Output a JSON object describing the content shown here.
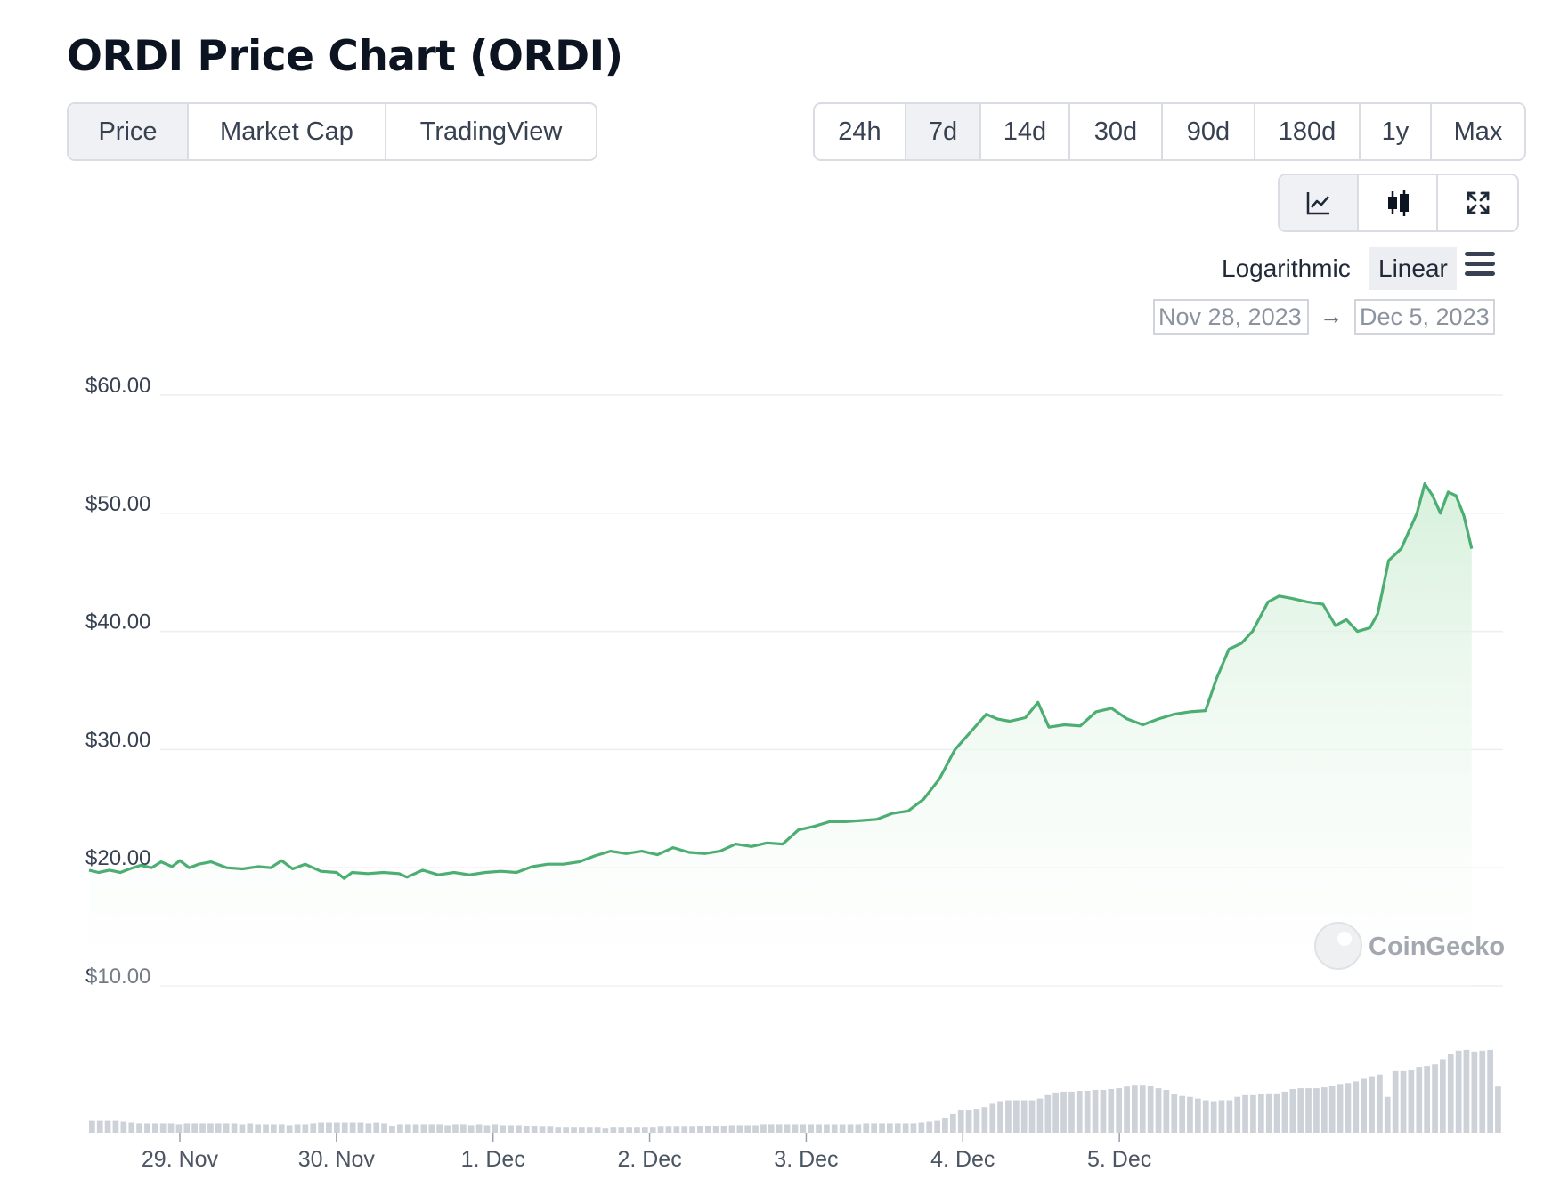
{
  "title": "ORDI Price Chart (ORDI)",
  "view_tabs": [
    {
      "label": "Price",
      "active": true
    },
    {
      "label": "Market Cap",
      "active": false
    },
    {
      "label": "TradingView",
      "active": false
    }
  ],
  "range_tabs": [
    {
      "label": "24h",
      "active": false
    },
    {
      "label": "7d",
      "active": true
    },
    {
      "label": "14d",
      "active": false
    },
    {
      "label": "30d",
      "active": false
    },
    {
      "label": "90d",
      "active": false
    },
    {
      "label": "180d",
      "active": false
    },
    {
      "label": "1y",
      "active": false
    },
    {
      "label": "Max",
      "active": false
    }
  ],
  "chart_type_tabs": [
    {
      "icon": "line-chart-icon",
      "active": true
    },
    {
      "icon": "candlestick-icon",
      "active": false
    },
    {
      "icon": "fullscreen-icon",
      "active": false
    }
  ],
  "scale": {
    "logarithmic": "Logarithmic",
    "linear": "Linear",
    "active": "Linear"
  },
  "menu_icon": "hamburger-menu-icon",
  "date_range": {
    "from": "Nov 28, 2023",
    "arrow": "→",
    "to": "Dec 5, 2023"
  },
  "watermark": {
    "text": "CoinGecko",
    "icon": "coingecko-logo-icon"
  },
  "colors": {
    "line": "#4cae72",
    "fill": "#dcf2df",
    "volume": "#cdd2d9",
    "grid": "#eceef1"
  },
  "chart_data": {
    "type": "area",
    "series": [
      {
        "name": "Price",
        "x_unit": "days since Nov 28 00:00",
        "points": [
          [
            0.42,
            19.8
          ],
          [
            0.48,
            19.6
          ],
          [
            0.55,
            19.8
          ],
          [
            0.62,
            19.6
          ],
          [
            0.68,
            19.9
          ],
          [
            0.75,
            20.2
          ],
          [
            0.82,
            20.0
          ],
          [
            0.88,
            20.5
          ],
          [
            0.95,
            20.1
          ],
          [
            1.0,
            20.6
          ],
          [
            1.06,
            20.0
          ],
          [
            1.12,
            20.3
          ],
          [
            1.2,
            20.5
          ],
          [
            1.3,
            20.0
          ],
          [
            1.4,
            19.9
          ],
          [
            1.5,
            20.1
          ],
          [
            1.58,
            20.0
          ],
          [
            1.65,
            20.6
          ],
          [
            1.72,
            19.9
          ],
          [
            1.8,
            20.3
          ],
          [
            1.9,
            19.7
          ],
          [
            2.0,
            19.6
          ],
          [
            2.05,
            19.1
          ],
          [
            2.1,
            19.6
          ],
          [
            2.2,
            19.5
          ],
          [
            2.3,
            19.6
          ],
          [
            2.4,
            19.5
          ],
          [
            2.45,
            19.2
          ],
          [
            2.55,
            19.8
          ],
          [
            2.65,
            19.4
          ],
          [
            2.75,
            19.6
          ],
          [
            2.85,
            19.4
          ],
          [
            2.95,
            19.6
          ],
          [
            3.05,
            19.7
          ],
          [
            3.15,
            19.6
          ],
          [
            3.25,
            20.1
          ],
          [
            3.35,
            20.3
          ],
          [
            3.45,
            20.3
          ],
          [
            3.55,
            20.5
          ],
          [
            3.65,
            21.0
          ],
          [
            3.75,
            21.4
          ],
          [
            3.85,
            21.2
          ],
          [
            3.95,
            21.4
          ],
          [
            4.05,
            21.1
          ],
          [
            4.15,
            21.7
          ],
          [
            4.25,
            21.3
          ],
          [
            4.35,
            21.2
          ],
          [
            4.45,
            21.4
          ],
          [
            4.55,
            22.0
          ],
          [
            4.65,
            21.8
          ],
          [
            4.75,
            22.1
          ],
          [
            4.85,
            22.0
          ],
          [
            4.95,
            23.2
          ],
          [
            5.05,
            23.5
          ],
          [
            5.15,
            23.9
          ],
          [
            5.25,
            23.9
          ],
          [
            5.35,
            24.0
          ],
          [
            5.45,
            24.1
          ],
          [
            5.55,
            24.6
          ],
          [
            5.65,
            24.8
          ],
          [
            5.75,
            25.8
          ],
          [
            5.85,
            27.5
          ],
          [
            5.95,
            30.0
          ],
          [
            6.05,
            31.5
          ],
          [
            6.15,
            33.0
          ],
          [
            6.22,
            32.6
          ],
          [
            6.3,
            32.4
          ],
          [
            6.4,
            32.7
          ],
          [
            6.48,
            34.0
          ],
          [
            6.55,
            31.9
          ],
          [
            6.65,
            32.1
          ],
          [
            6.75,
            32.0
          ],
          [
            6.85,
            33.2
          ],
          [
            6.95,
            33.5
          ],
          [
            7.05,
            32.6
          ],
          [
            7.15,
            32.1
          ],
          [
            7.25,
            32.6
          ],
          [
            7.35,
            33.0
          ],
          [
            7.45,
            33.2
          ],
          [
            7.55,
            33.3
          ],
          [
            7.62,
            36.0
          ],
          [
            7.7,
            38.5
          ],
          [
            7.78,
            39.0
          ],
          [
            7.85,
            40.0
          ],
          [
            7.95,
            42.5
          ],
          [
            8.02,
            43.0
          ],
          [
            8.1,
            42.8
          ],
          [
            8.2,
            42.5
          ],
          [
            8.3,
            42.3
          ],
          [
            8.38,
            40.5
          ],
          [
            8.45,
            41.0
          ],
          [
            8.52,
            40.0
          ],
          [
            8.6,
            40.3
          ],
          [
            8.65,
            41.5
          ],
          [
            8.72,
            46.0
          ],
          [
            8.8,
            47.0
          ],
          [
            8.85,
            48.5
          ],
          [
            8.9,
            50.0
          ],
          [
            8.95,
            52.5
          ],
          [
            9.0,
            51.5
          ],
          [
            9.05,
            50.0
          ],
          [
            9.1,
            51.8
          ],
          [
            9.15,
            51.5
          ],
          [
            9.2,
            49.8
          ],
          [
            9.25,
            47.0
          ]
        ]
      }
    ],
    "volume": {
      "name": "Volume",
      "relative": [
        0.14,
        0.14,
        0.14,
        0.14,
        0.13,
        0.12,
        0.11,
        0.11,
        0.11,
        0.11,
        0.11,
        0.1,
        0.11,
        0.11,
        0.11,
        0.11,
        0.11,
        0.11,
        0.11,
        0.1,
        0.11,
        0.1,
        0.1,
        0.1,
        0.1,
        0.09,
        0.1,
        0.1,
        0.11,
        0.12,
        0.12,
        0.12,
        0.12,
        0.12,
        0.12,
        0.11,
        0.12,
        0.11,
        0.08,
        0.1,
        0.1,
        0.1,
        0.1,
        0.1,
        0.1,
        0.09,
        0.1,
        0.1,
        0.09,
        0.1,
        0.09,
        0.1,
        0.09,
        0.09,
        0.09,
        0.08,
        0.08,
        0.07,
        0.07,
        0.06,
        0.06,
        0.06,
        0.06,
        0.06,
        0.06,
        0.05,
        0.06,
        0.06,
        0.06,
        0.06,
        0.06,
        0.06,
        0.07,
        0.07,
        0.07,
        0.07,
        0.07,
        0.08,
        0.08,
        0.08,
        0.08,
        0.09,
        0.09,
        0.09,
        0.09,
        0.1,
        0.1,
        0.1,
        0.1,
        0.1,
        0.1,
        0.1,
        0.1,
        0.1,
        0.1,
        0.1,
        0.1,
        0.1,
        0.11,
        0.11,
        0.11,
        0.11,
        0.11,
        0.11,
        0.11,
        0.12,
        0.13,
        0.14,
        0.17,
        0.22,
        0.26,
        0.27,
        0.28,
        0.3,
        0.34,
        0.37,
        0.38,
        0.38,
        0.38,
        0.38,
        0.4,
        0.44,
        0.47,
        0.48,
        0.48,
        0.49,
        0.49,
        0.5,
        0.5,
        0.51,
        0.52,
        0.54,
        0.56,
        0.56,
        0.55,
        0.52,
        0.5,
        0.45,
        0.43,
        0.42,
        0.4,
        0.38,
        0.37,
        0.38,
        0.38,
        0.42,
        0.44,
        0.44,
        0.45,
        0.46,
        0.46,
        0.48,
        0.51,
        0.52,
        0.52,
        0.52,
        0.53,
        0.55,
        0.57,
        0.58,
        0.6,
        0.63,
        0.66,
        0.68,
        0.42,
        0.72,
        0.72,
        0.74,
        0.77,
        0.78,
        0.8,
        0.86,
        0.92,
        0.96,
        0.97,
        0.95,
        0.96,
        0.97,
        0.54
      ]
    },
    "y_ticks": [
      "$60.00",
      "$50.00",
      "$40.00",
      "$30.00",
      "$20.00",
      "$10.00"
    ],
    "y_values": [
      60,
      50,
      40,
      30,
      20,
      10
    ],
    "ylim": [
      10,
      60
    ],
    "x_ticks": [
      "29. Nov",
      "30. Nov",
      "1. Dec",
      "2. Dec",
      "3. Dec",
      "4. Dec",
      "5. Dec"
    ],
    "x_tick_values": [
      1,
      2,
      3,
      4,
      5,
      6,
      7
    ],
    "xlim": [
      0.42,
      9.45
    ],
    "grid": true
  }
}
